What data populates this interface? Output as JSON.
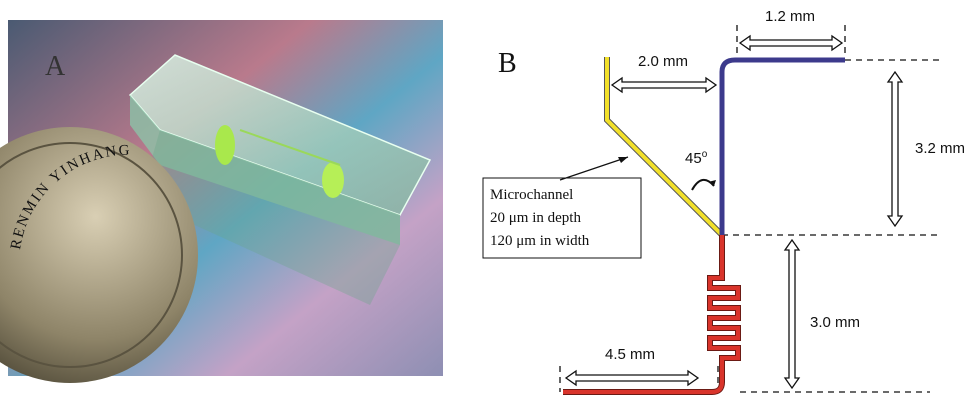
{
  "panel_a": {
    "label": "A",
    "coin_text": "RENMIN YINHANG"
  },
  "panel_b": {
    "label": "B",
    "dim_top": "1.2 mm",
    "dim_left": "2.0 mm",
    "dim_right_upper": "3.2 mm",
    "dim_right_lower": "3.0 mm",
    "dim_bottom": "4.5 mm",
    "angle": "45",
    "angle_sup": "o",
    "callout": [
      "Microchannel",
      "20 μm in depth",
      "120 μm in width"
    ]
  }
}
